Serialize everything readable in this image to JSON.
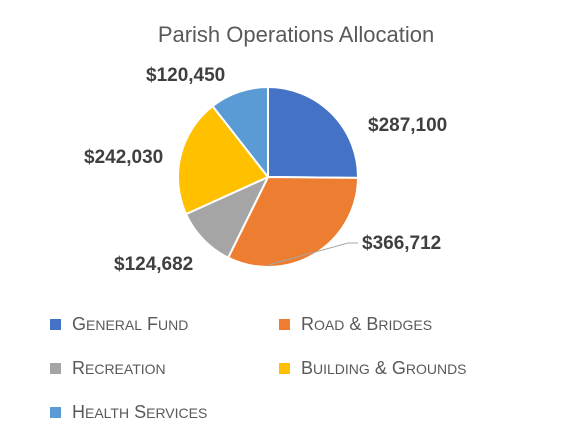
{
  "chart_data": {
    "type": "pie",
    "title": "Parish Operations Allocation",
    "categories": [
      "General Fund",
      "Road & Bridges",
      "Recreation",
      "Building & Grounds",
      "Health Services"
    ],
    "values": [
      287100,
      366712,
      124682,
      242030,
      120450
    ],
    "value_labels": [
      "$287,100",
      "$366,712",
      "$124,682",
      "$242,030",
      "$120,450"
    ],
    "colors": [
      "#4472C4",
      "#ED7D31",
      "#A5A5A5",
      "#FFC000",
      "#5B9BD5"
    ],
    "start_angle_deg": 0,
    "direction": "clockwise",
    "legend_position": "bottom",
    "data_labels": "outside, bold"
  }
}
